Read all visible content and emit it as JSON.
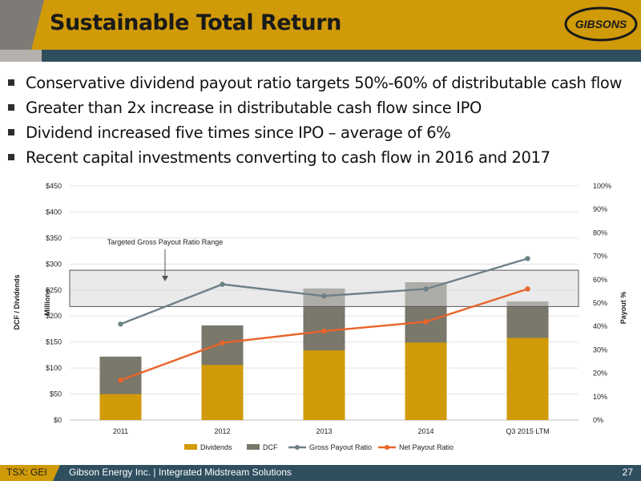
{
  "header": {
    "title": "Sustainable Total Return",
    "logo_text": "GIBSONS"
  },
  "bullets": [
    "Conservative dividend payout ratio targets 50%-60% of distributable cash flow",
    "Greater than 2x increase in distributable cash flow since IPO",
    "Dividend increased five times since IPO – average of 6%",
    "Recent capital investments converting to cash flow in 2016 and 2017"
  ],
  "colors": {
    "gold": "#d09a09",
    "dcf": "#7a776b",
    "gross": "#6e8088",
    "net": "#e8642a",
    "band": "#d9d9d9"
  },
  "chart_data": {
    "type": "bar",
    "categories": [
      "2011",
      "2012",
      "2013",
      "2014",
      "Q3 2015 LTM"
    ],
    "series": [
      {
        "name": "Dividends",
        "type": "bar",
        "axis": "left",
        "values": [
          50,
          106,
          134,
          149,
          158
        ]
      },
      {
        "name": "DCF",
        "type": "bar",
        "axis": "left",
        "values": [
          122,
          182,
          253,
          265,
          228
        ]
      },
      {
        "name": "Gross Payout Ratio",
        "type": "line",
        "axis": "right",
        "values": [
          41,
          58,
          53,
          56,
          69
        ]
      },
      {
        "name": "Net Payout Ratio",
        "type": "line",
        "axis": "right",
        "values": [
          17,
          33,
          38,
          42,
          56
        ]
      }
    ],
    "ylabel": "DCF / Dividends",
    "ylabel_units": "Millions",
    "y2label": "Payout %",
    "ylim": [
      0,
      450
    ],
    "y2lim": [
      0,
      100
    ],
    "y_ticks": [
      "$0",
      "$50",
      "$100",
      "$150",
      "$200",
      "$250",
      "$300",
      "$350",
      "$400",
      "$450"
    ],
    "y2_ticks": [
      "0%",
      "10%",
      "20%",
      "30%",
      "40%",
      "50%",
      "60%",
      "70%",
      "80%",
      "90%",
      "100%"
    ],
    "target_band": {
      "label": "Targeted Gross Payout Ratio Range",
      "range": [
        48.5,
        64
      ]
    },
    "legend_position": "bottom"
  },
  "footer": {
    "ticker": "TSX: GEI",
    "company": "Gibson Energy Inc.   |   Integrated Midstream Solutions",
    "page": "27"
  }
}
